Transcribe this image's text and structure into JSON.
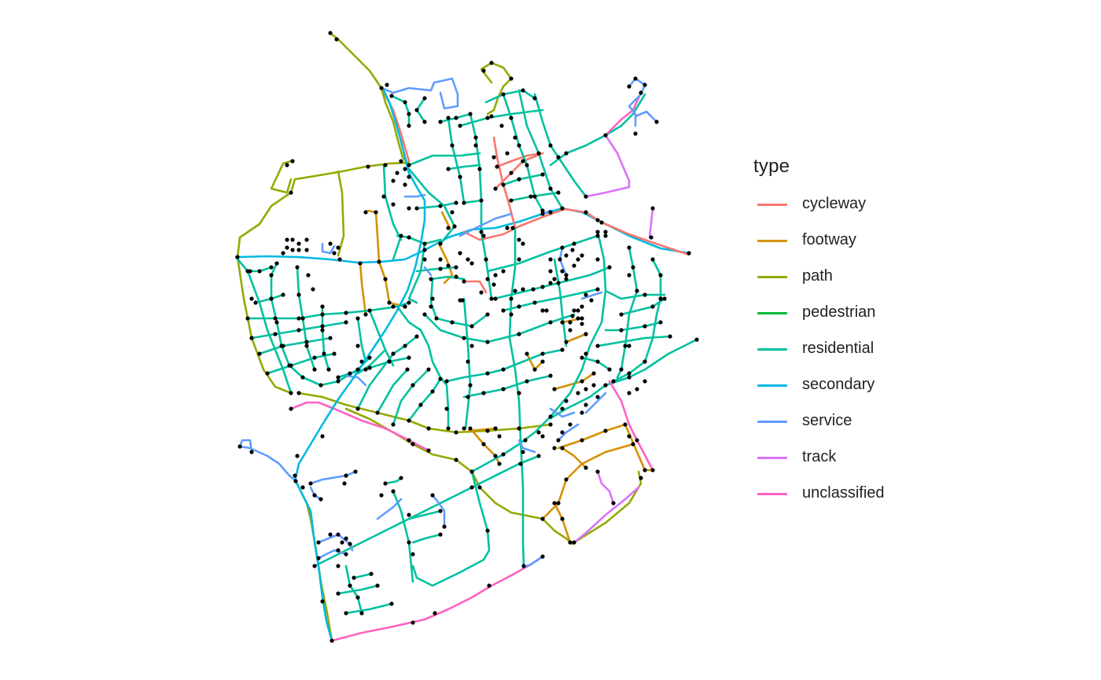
{
  "legend": {
    "title": "type",
    "items": [
      {
        "key": "cycleway",
        "label": "cycleway",
        "color": "#F8766D"
      },
      {
        "key": "footway",
        "label": "footway",
        "color": "#D39200"
      },
      {
        "key": "path",
        "label": "path",
        "color": "#93AA00"
      },
      {
        "key": "pedestrian",
        "label": "pedestrian",
        "color": "#00BA38"
      },
      {
        "key": "residential",
        "label": "residential",
        "color": "#00C19F"
      },
      {
        "key": "secondary",
        "label": "secondary",
        "color": "#00B9E3"
      },
      {
        "key": "service",
        "label": "service",
        "color": "#619CFF"
      },
      {
        "key": "track",
        "label": "track",
        "color": "#DB72FB"
      },
      {
        "key": "unclassified",
        "label": "unclassified",
        "color": "#FF61C3"
      }
    ]
  },
  "node_color": "#000000"
}
